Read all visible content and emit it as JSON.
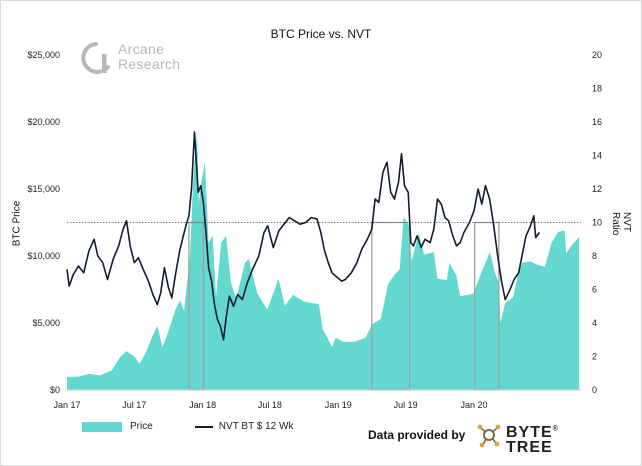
{
  "brand": {
    "line1": "Arcane",
    "line2": "Research"
  },
  "provider": {
    "label": "Data provided by",
    "name": "BYTE",
    "name2": "TREE",
    "mark": "®"
  },
  "colors": {
    "price": "#63d8cf",
    "nvt": "#111d33",
    "box": "#a0a0a0",
    "threshold": "#555555"
  },
  "chart_data": {
    "type": "area",
    "title": "BTC Price vs. NVT",
    "ylabel": "BTC Price",
    "y2label": "NVT Ratio",
    "ylim": [
      0,
      25000
    ],
    "y2lim": [
      0,
      20
    ],
    "xlim": [
      "2017-01-01",
      "2020-10-15"
    ],
    "yticks": [
      "$0",
      "$5,000",
      "$10,000",
      "$15,000",
      "$20,000",
      "$25,000"
    ],
    "y2ticks": [
      "0",
      "2",
      "4",
      "6",
      "8",
      "10",
      "12",
      "14",
      "16",
      "18",
      "20"
    ],
    "xticks": [
      {
        "label": "Jan 17",
        "date": "2017-01-01"
      },
      {
        "label": "Jul 17",
        "date": "2017-07-01"
      },
      {
        "label": "Jan 18",
        "date": "2018-01-01"
      },
      {
        "label": "Jul 18",
        "date": "2018-07-01"
      },
      {
        "label": "Jan 19",
        "date": "2019-01-01"
      },
      {
        "label": "Jul 19",
        "date": "2019-07-01"
      },
      {
        "label": "Jan 20",
        "date": "2020-01-01"
      }
    ],
    "threshold_nvt": 10,
    "highlight_periods": [
      [
        "2017-11-25",
        "2018-01-03"
      ],
      [
        "2019-04-01",
        "2019-07-12"
      ],
      [
        "2020-01-03",
        "2020-03-08"
      ]
    ],
    "series": [
      {
        "name": "Price",
        "axis": "left",
        "points": [
          [
            "2017-01-01",
            980
          ],
          [
            "2017-02-01",
            1000
          ],
          [
            "2017-03-01",
            1200
          ],
          [
            "2017-04-01",
            1100
          ],
          [
            "2017-05-01",
            1450
          ],
          [
            "2017-05-25",
            2500
          ],
          [
            "2017-06-10",
            2900
          ],
          [
            "2017-07-01",
            2500
          ],
          [
            "2017-07-15",
            1950
          ],
          [
            "2017-08-01",
            2800
          ],
          [
            "2017-08-20",
            4100
          ],
          [
            "2017-09-01",
            4800
          ],
          [
            "2017-09-15",
            3200
          ],
          [
            "2017-10-01",
            4400
          ],
          [
            "2017-10-20",
            6000
          ],
          [
            "2017-11-01",
            6700
          ],
          [
            "2017-11-12",
            5900
          ],
          [
            "2017-11-28",
            10000
          ],
          [
            "2017-12-07",
            16000
          ],
          [
            "2017-12-17",
            19300
          ],
          [
            "2017-12-22",
            14000
          ],
          [
            "2017-12-28",
            15500
          ],
          [
            "2018-01-07",
            17000
          ],
          [
            "2018-01-17",
            11000
          ],
          [
            "2018-01-28",
            11500
          ],
          [
            "2018-02-06",
            6900
          ],
          [
            "2018-02-20",
            11000
          ],
          [
            "2018-03-05",
            11500
          ],
          [
            "2018-03-18",
            8000
          ],
          [
            "2018-04-01",
            6800
          ],
          [
            "2018-04-25",
            9500
          ],
          [
            "2018-05-05",
            9800
          ],
          [
            "2018-05-28",
            7200
          ],
          [
            "2018-06-24",
            6000
          ],
          [
            "2018-07-24",
            8300
          ],
          [
            "2018-08-10",
            6300
          ],
          [
            "2018-09-01",
            7100
          ],
          [
            "2018-10-01",
            6600
          ],
          [
            "2018-11-10",
            6400
          ],
          [
            "2018-11-20",
            4500
          ],
          [
            "2018-12-01",
            4000
          ],
          [
            "2018-12-15",
            3200
          ],
          [
            "2018-12-25",
            3900
          ],
          [
            "2019-01-15",
            3600
          ],
          [
            "2019-02-15",
            3600
          ],
          [
            "2019-03-15",
            3900
          ],
          [
            "2019-04-02",
            4900
          ],
          [
            "2019-04-25",
            5300
          ],
          [
            "2019-05-15",
            7900
          ],
          [
            "2019-06-01",
            8600
          ],
          [
            "2019-06-15",
            9000
          ],
          [
            "2019-06-26",
            12900
          ],
          [
            "2019-07-10",
            12300
          ],
          [
            "2019-07-17",
            9600
          ],
          [
            "2019-08-05",
            11700
          ],
          [
            "2019-08-20",
            10100
          ],
          [
            "2019-09-15",
            10300
          ],
          [
            "2019-09-25",
            8300
          ],
          [
            "2019-10-20",
            8200
          ],
          [
            "2019-10-27",
            9500
          ],
          [
            "2019-11-15",
            8500
          ],
          [
            "2019-11-25",
            7000
          ],
          [
            "2019-12-15",
            7100
          ],
          [
            "2019-12-31",
            7200
          ],
          [
            "2020-01-20",
            8700
          ],
          [
            "2020-02-13",
            10300
          ],
          [
            "2020-02-27",
            8700
          ],
          [
            "2020-03-08",
            8000
          ],
          [
            "2020-03-12",
            5000
          ],
          [
            "2020-03-25",
            6500
          ],
          [
            "2020-04-15",
            6900
          ],
          [
            "2020-04-30",
            8800
          ],
          [
            "2020-05-10",
            9500
          ],
          [
            "2020-06-01",
            9600
          ],
          [
            "2020-06-15",
            9400
          ],
          [
            "2020-07-10",
            9200
          ],
          [
            "2020-07-28",
            11000
          ],
          [
            "2020-08-15",
            11800
          ],
          [
            "2020-09-01",
            11900
          ],
          [
            "2020-09-05",
            10200
          ],
          [
            "2020-09-20",
            10800
          ],
          [
            "2020-10-10",
            11400
          ]
        ]
      },
      {
        "name": "NVT BT $ 12 Wk",
        "axis": "right",
        "points": [
          [
            "2017-01-01",
            7.2
          ],
          [
            "2017-01-07",
            6.2
          ],
          [
            "2017-01-18",
            6.9
          ],
          [
            "2017-02-01",
            7.4
          ],
          [
            "2017-02-15",
            7.0
          ],
          [
            "2017-03-01",
            8.3
          ],
          [
            "2017-03-15",
            9.0
          ],
          [
            "2017-03-25",
            8.0
          ],
          [
            "2017-04-07",
            7.6
          ],
          [
            "2017-04-20",
            6.6
          ],
          [
            "2017-05-05",
            7.8
          ],
          [
            "2017-05-20",
            8.6
          ],
          [
            "2017-06-01",
            9.6
          ],
          [
            "2017-06-10",
            10.1
          ],
          [
            "2017-06-20",
            8.6
          ],
          [
            "2017-07-01",
            7.6
          ],
          [
            "2017-07-12",
            7.9
          ],
          [
            "2017-07-25",
            7.2
          ],
          [
            "2017-08-08",
            6.5
          ],
          [
            "2017-08-20",
            5.7
          ],
          [
            "2017-09-01",
            5.1
          ],
          [
            "2017-09-10",
            5.8
          ],
          [
            "2017-09-20",
            7.3
          ],
          [
            "2017-10-01",
            6.1
          ],
          [
            "2017-10-10",
            5.5
          ],
          [
            "2017-10-20",
            6.9
          ],
          [
            "2017-11-01",
            8.4
          ],
          [
            "2017-11-10",
            9.2
          ],
          [
            "2017-11-18",
            9.9
          ],
          [
            "2017-11-25",
            10.4
          ],
          [
            "2017-12-02",
            12.0
          ],
          [
            "2017-12-10",
            15.4
          ],
          [
            "2017-12-15",
            13.6
          ],
          [
            "2017-12-20",
            11.8
          ],
          [
            "2017-12-27",
            12.2
          ],
          [
            "2018-01-03",
            11.2
          ],
          [
            "2018-01-10",
            9.4
          ],
          [
            "2018-01-17",
            7.3
          ],
          [
            "2018-01-25",
            6.5
          ],
          [
            "2018-02-02",
            5.1
          ],
          [
            "2018-02-10",
            4.2
          ],
          [
            "2018-02-18",
            3.8
          ],
          [
            "2018-02-26",
            3.0
          ],
          [
            "2018-03-05",
            4.3
          ],
          [
            "2018-03-14",
            5.6
          ],
          [
            "2018-03-25",
            5.0
          ],
          [
            "2018-04-05",
            5.7
          ],
          [
            "2018-04-18",
            5.4
          ],
          [
            "2018-05-01",
            6.4
          ],
          [
            "2018-05-15",
            7.2
          ],
          [
            "2018-06-01",
            8.0
          ],
          [
            "2018-06-15",
            9.4
          ],
          [
            "2018-06-25",
            9.8
          ],
          [
            "2018-07-10",
            8.5
          ],
          [
            "2018-07-25",
            9.5
          ],
          [
            "2018-08-08",
            9.9
          ],
          [
            "2018-08-22",
            10.3
          ],
          [
            "2018-09-05",
            10.1
          ],
          [
            "2018-09-20",
            9.9
          ],
          [
            "2018-10-05",
            10.0
          ],
          [
            "2018-10-20",
            10.3
          ],
          [
            "2018-11-05",
            10.2
          ],
          [
            "2018-11-15",
            9.4
          ],
          [
            "2018-11-25",
            8.3
          ],
          [
            "2018-12-05",
            7.6
          ],
          [
            "2018-12-15",
            7.0
          ],
          [
            "2018-12-25",
            6.8
          ],
          [
            "2019-01-10",
            6.5
          ],
          [
            "2019-01-20",
            6.6
          ],
          [
            "2019-02-05",
            7.0
          ],
          [
            "2019-02-20",
            7.6
          ],
          [
            "2019-03-05",
            8.4
          ],
          [
            "2019-03-20",
            9.0
          ],
          [
            "2019-04-01",
            9.6
          ],
          [
            "2019-04-10",
            11.4
          ],
          [
            "2019-04-20",
            11.2
          ],
          [
            "2019-05-01",
            13.0
          ],
          [
            "2019-05-12",
            13.6
          ],
          [
            "2019-05-22",
            11.8
          ],
          [
            "2019-06-01",
            11.4
          ],
          [
            "2019-06-12",
            12.4
          ],
          [
            "2019-06-20",
            14.1
          ],
          [
            "2019-06-28",
            12.2
          ],
          [
            "2019-07-08",
            11.8
          ],
          [
            "2019-07-15",
            8.8
          ],
          [
            "2019-07-22",
            8.6
          ],
          [
            "2019-08-01",
            9.2
          ],
          [
            "2019-08-12",
            8.5
          ],
          [
            "2019-08-22",
            9.0
          ],
          [
            "2019-09-05",
            8.8
          ],
          [
            "2019-09-15",
            9.6
          ],
          [
            "2019-09-25",
            11.4
          ],
          [
            "2019-10-05",
            11.1
          ],
          [
            "2019-10-15",
            10.3
          ],
          [
            "2019-10-25",
            10.1
          ],
          [
            "2019-11-05",
            9.2
          ],
          [
            "2019-11-15",
            8.6
          ],
          [
            "2019-11-25",
            8.8
          ],
          [
            "2019-12-05",
            9.4
          ],
          [
            "2019-12-20",
            10.0
          ],
          [
            "2020-01-01",
            10.7
          ],
          [
            "2020-01-12",
            12.0
          ],
          [
            "2020-01-22",
            11.1
          ],
          [
            "2020-02-01",
            12.2
          ],
          [
            "2020-02-12",
            11.4
          ],
          [
            "2020-02-22",
            10.0
          ],
          [
            "2020-03-05",
            8.0
          ],
          [
            "2020-03-15",
            6.5
          ],
          [
            "2020-03-25",
            5.4
          ],
          [
            "2020-04-05",
            5.9
          ],
          [
            "2020-04-18",
            6.6
          ],
          [
            "2020-04-30",
            7.0
          ],
          [
            "2020-05-10",
            8.1
          ],
          [
            "2020-05-20",
            9.2
          ],
          [
            "2020-06-01",
            9.8
          ],
          [
            "2020-06-10",
            10.4
          ],
          [
            "2020-06-15",
            9.1
          ],
          [
            "2020-06-25",
            9.4
          ]
        ]
      }
    ]
  }
}
